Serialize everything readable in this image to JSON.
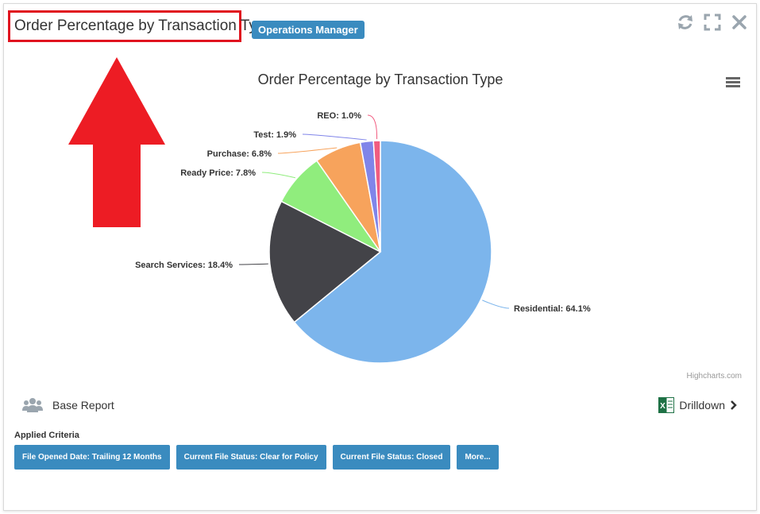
{
  "header": {
    "title": "Order Percentage by Transaction Type",
    "role_badge": "Operations Manager",
    "icons": [
      "refresh-icon",
      "expand-icon",
      "close-icon"
    ]
  },
  "colors": {
    "accent": "#3a8bbf",
    "highlight": "#e0131f"
  },
  "chart_data": {
    "type": "pie",
    "title": "Order Percentage by Transaction Type",
    "slices": [
      {
        "name": "Residential",
        "value": 64.1,
        "label": "Residential: 64.1%",
        "color": "#7cb5ec"
      },
      {
        "name": "Search Services",
        "value": 18.4,
        "label": "Search Services: 18.4%",
        "color": "#434348"
      },
      {
        "name": "Ready Price",
        "value": 7.8,
        "label": "Ready Price: 7.8%",
        "color": "#90ed7d"
      },
      {
        "name": "Purchase",
        "value": 6.8,
        "label": "Purchase: 6.8%",
        "color": "#f7a35c"
      },
      {
        "name": "Test",
        "value": 1.9,
        "label": "Test: 1.9%",
        "color": "#8085e9"
      },
      {
        "name": "REO",
        "value": 1.0,
        "label": "REO: 1.0%",
        "color": "#f15c80"
      }
    ],
    "credit": "Highcharts.com"
  },
  "footer": {
    "base_report": "Base Report",
    "drilldown": "Drilldown",
    "criteria_label": "Applied Criteria",
    "criteria": [
      "File Opened Date: Trailing 12 Months",
      "Current File Status: Clear for Policy",
      "Current File Status: Closed",
      "More..."
    ]
  }
}
